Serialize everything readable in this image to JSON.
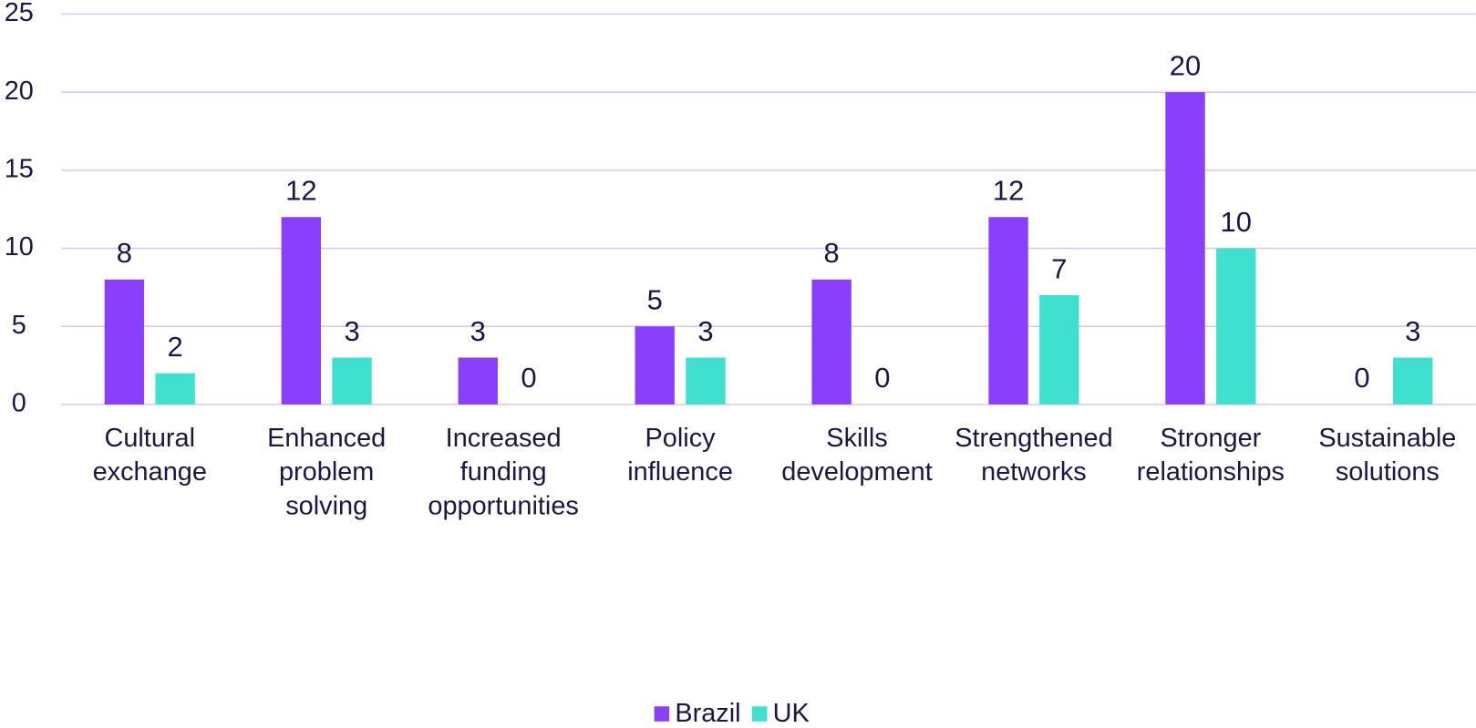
{
  "chart_data": {
    "type": "bar",
    "categories": [
      "Cultural exchange",
      "Enhanced problem solving",
      "Increased funding opportunities",
      "Policy influence",
      "Skills development",
      "Strengthened networks",
      "Stronger relationships",
      "Sustainable solutions"
    ],
    "series": [
      {
        "name": "Brazil",
        "color": "#8a3ffc",
        "values": [
          8,
          12,
          3,
          5,
          8,
          12,
          20,
          0
        ]
      },
      {
        "name": "UK",
        "color": "#40e0d0",
        "values": [
          2,
          3,
          0,
          3,
          0,
          7,
          10,
          3
        ]
      }
    ],
    "ylim": [
      0,
      25
    ],
    "yticks": [
      0,
      5,
      10,
      15,
      20,
      25
    ],
    "grid": true,
    "legend": "bottom"
  }
}
